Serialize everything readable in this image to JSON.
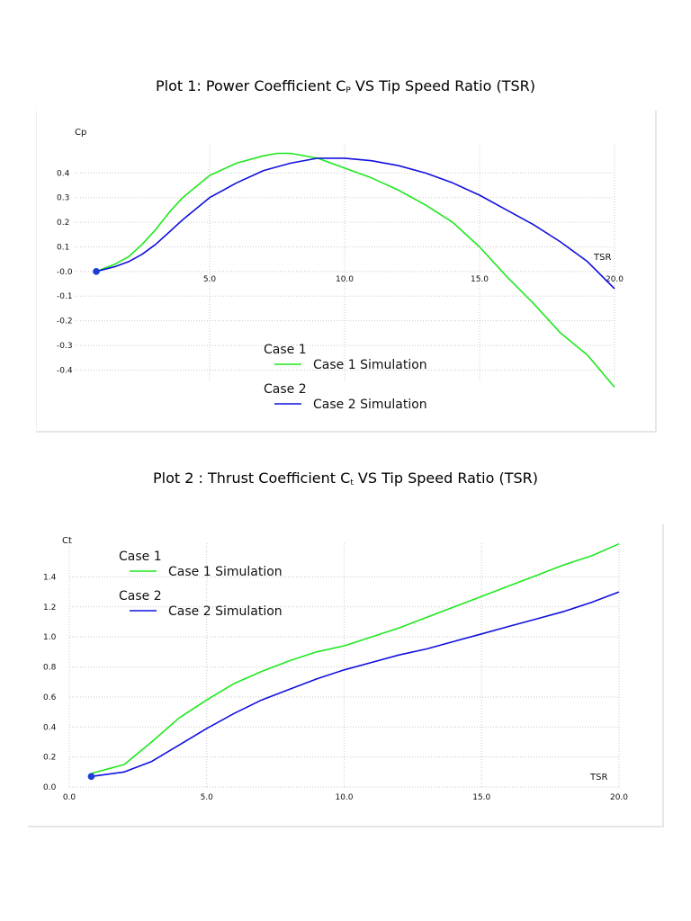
{
  "plots": [
    {
      "title_main": "Plot 1: Power Coefficient C",
      "title_sub": "P",
      "title_rest": " VS Tip Speed Ratio (TSR)"
    },
    {
      "title_main": "Plot 2 : Thrust Coefficient C",
      "title_sub": "t",
      "title_rest": " VS Tip Speed Ratio (TSR)"
    }
  ],
  "colors": {
    "case1": "#1fe81f",
    "case2": "#1010dd",
    "grid": "#c8c8c8",
    "marker": "#1a3fd6"
  },
  "chart_data": [
    {
      "type": "line",
      "xlabel": "TSR",
      "ylabel": "Cp",
      "xlim": [
        0,
        20
      ],
      "ylim": [
        -0.45,
        0.5
      ],
      "xticks": [
        "5.0",
        "10.0",
        "15.0",
        "20.0"
      ],
      "xtick_values": [
        5,
        10,
        15,
        20
      ],
      "yticks": [
        "0.4",
        "0.3",
        "0.2",
        "0.1",
        "-0.0",
        "-0.1",
        "-0.2",
        "-0.3",
        "-0.4"
      ],
      "ytick_values": [
        0.4,
        0.3,
        0.2,
        0.1,
        0.0,
        -0.1,
        -0.2,
        -0.3,
        -0.4
      ],
      "grid": true,
      "legend": "bottom-center",
      "start_marker": {
        "x": 0.8,
        "y": 0.0
      },
      "series": [
        {
          "legend_case": "Case 1",
          "name": "Case 1 Simulation",
          "x": [
            0.8,
            1.5,
            2.0,
            2.5,
            3.0,
            3.5,
            4.0,
            5.0,
            6.0,
            7.0,
            7.5,
            8.0,
            9.0,
            10.0,
            11.0,
            12.0,
            13.0,
            14.0,
            15.0,
            16.0,
            17.0,
            18.0,
            19.0,
            20.0
          ],
          "y": [
            0.0,
            0.03,
            0.06,
            0.11,
            0.17,
            0.24,
            0.3,
            0.39,
            0.44,
            0.47,
            0.48,
            0.48,
            0.46,
            0.42,
            0.38,
            0.33,
            0.27,
            0.2,
            0.1,
            -0.02,
            -0.13,
            -0.25,
            -0.34,
            -0.47
          ]
        },
        {
          "legend_case": "Case 2",
          "name": "Case 2 Simulation",
          "x": [
            0.8,
            1.5,
            2.0,
            2.5,
            3.0,
            3.5,
            4.0,
            5.0,
            6.0,
            7.0,
            8.0,
            9.0,
            10.0,
            11.0,
            12.0,
            13.0,
            14.0,
            15.0,
            16.0,
            17.0,
            18.0,
            19.0,
            20.0
          ],
          "y": [
            0.0,
            0.02,
            0.04,
            0.07,
            0.11,
            0.16,
            0.21,
            0.3,
            0.36,
            0.41,
            0.44,
            0.46,
            0.46,
            0.45,
            0.43,
            0.4,
            0.36,
            0.31,
            0.25,
            0.19,
            0.12,
            0.04,
            -0.07
          ]
        }
      ]
    },
    {
      "type": "line",
      "xlabel": "TSR",
      "ylabel": "Ct",
      "xlim": [
        0,
        20
      ],
      "ylim": [
        0,
        1.6
      ],
      "xticks": [
        "0.0",
        "5.0",
        "10.0",
        "15.0",
        "20.0"
      ],
      "xtick_values": [
        0,
        5,
        10,
        15,
        20
      ],
      "yticks": [
        "1.4",
        "1.2",
        "1.0",
        "0.8",
        "0.6",
        "0.4",
        "0.2",
        "0.0"
      ],
      "ytick_values": [
        1.4,
        1.2,
        1.0,
        0.8,
        0.6,
        0.4,
        0.2,
        0.0
      ],
      "grid": true,
      "legend": "top-left",
      "start_marker": {
        "x": 0.8,
        "y": 0.07
      },
      "series": [
        {
          "legend_case": "Case 1",
          "name": "Case 1 Simulation",
          "x": [
            0.8,
            2.0,
            3.0,
            4.0,
            5.0,
            6.0,
            7.0,
            8.0,
            9.0,
            10.0,
            11.0,
            12.0,
            13.0,
            14.0,
            15.0,
            16.0,
            17.0,
            18.0,
            19.0,
            20.0
          ],
          "y": [
            0.09,
            0.15,
            0.3,
            0.46,
            0.58,
            0.69,
            0.77,
            0.84,
            0.9,
            0.94,
            1.0,
            1.06,
            1.13,
            1.2,
            1.27,
            1.34,
            1.41,
            1.48,
            1.54,
            1.62
          ]
        },
        {
          "legend_case": "Case 2",
          "name": "Case 2 Simulation",
          "x": [
            0.8,
            2.0,
            3.0,
            4.0,
            5.0,
            6.0,
            7.0,
            8.0,
            9.0,
            10.0,
            11.0,
            12.0,
            13.0,
            14.0,
            15.0,
            16.0,
            17.0,
            18.0,
            19.0,
            20.0
          ],
          "y": [
            0.07,
            0.1,
            0.17,
            0.28,
            0.39,
            0.49,
            0.58,
            0.65,
            0.72,
            0.78,
            0.83,
            0.88,
            0.92,
            0.97,
            1.02,
            1.07,
            1.12,
            1.17,
            1.23,
            1.3
          ]
        }
      ]
    }
  ]
}
